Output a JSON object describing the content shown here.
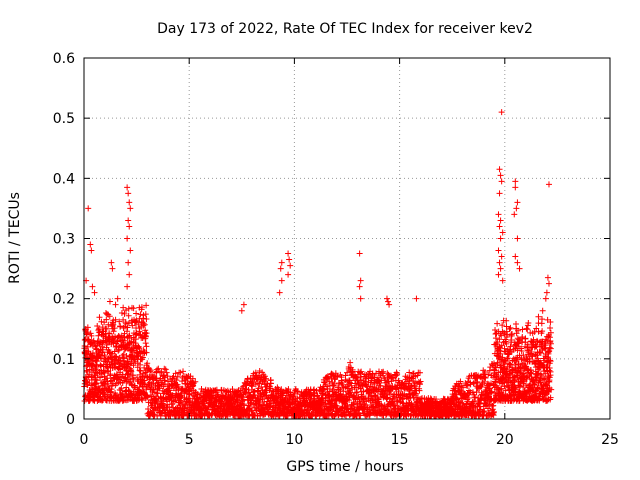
{
  "chart_data": {
    "type": "scatter",
    "title": "Day 173 of 2022, Rate Of TEC Index for receiver kev2",
    "xlabel": "GPS time / hours",
    "ylabel": "ROTI / TECUs",
    "xlim": [
      0,
      25
    ],
    "ylim": [
      0,
      0.6
    ],
    "xticks": [
      0,
      5,
      10,
      15,
      20,
      25
    ],
    "xtick_labels": [
      "0",
      "5",
      "10",
      "15",
      "20",
      "25"
    ],
    "yticks": [
      0,
      0.1,
      0.2,
      0.3,
      0.4,
      0.5,
      0.6
    ],
    "ytick_labels": [
      "0",
      "0.1",
      "0.2",
      "0.3",
      "0.4",
      "0.5",
      "0.6"
    ],
    "grid": true,
    "marker": "+",
    "color": "#ff0000",
    "series": [
      {
        "points": [
          [
            0.2,
            0.35
          ],
          [
            0.3,
            0.29
          ],
          [
            0.35,
            0.28
          ],
          [
            0.1,
            0.23
          ],
          [
            0.4,
            0.22
          ],
          [
            0.5,
            0.21
          ],
          [
            1.3,
            0.26
          ],
          [
            1.35,
            0.25
          ],
          [
            1.5,
            0.19
          ],
          [
            1.6,
            0.2
          ],
          [
            2.05,
            0.385
          ],
          [
            2.1,
            0.375
          ],
          [
            2.15,
            0.36
          ],
          [
            2.2,
            0.35
          ],
          [
            2.1,
            0.33
          ],
          [
            2.15,
            0.32
          ],
          [
            2.05,
            0.3
          ],
          [
            2.2,
            0.28
          ],
          [
            2.1,
            0.26
          ],
          [
            2.15,
            0.24
          ],
          [
            2.05,
            0.22
          ],
          [
            9.7,
            0.275
          ],
          [
            9.75,
            0.265
          ],
          [
            9.8,
            0.255
          ],
          [
            9.7,
            0.24
          ],
          [
            9.4,
            0.26
          ],
          [
            9.35,
            0.25
          ],
          [
            9.4,
            0.23
          ],
          [
            9.3,
            0.21
          ],
          [
            7.6,
            0.19
          ],
          [
            7.5,
            0.18
          ],
          [
            13.1,
            0.275
          ],
          [
            13.15,
            0.23
          ],
          [
            13.1,
            0.22
          ],
          [
            13.15,
            0.2
          ],
          [
            14.4,
            0.2
          ],
          [
            14.45,
            0.195
          ],
          [
            14.5,
            0.19
          ],
          [
            15.8,
            0.2
          ],
          [
            19.85,
            0.51
          ],
          [
            19.75,
            0.415
          ],
          [
            19.8,
            0.405
          ],
          [
            19.85,
            0.395
          ],
          [
            19.75,
            0.375
          ],
          [
            19.7,
            0.34
          ],
          [
            19.8,
            0.33
          ],
          [
            19.75,
            0.32
          ],
          [
            19.9,
            0.31
          ],
          [
            19.8,
            0.3
          ],
          [
            19.7,
            0.28
          ],
          [
            19.85,
            0.27
          ],
          [
            19.75,
            0.26
          ],
          [
            19.8,
            0.25
          ],
          [
            19.7,
            0.24
          ],
          [
            19.9,
            0.23
          ],
          [
            20.5,
            0.395
          ],
          [
            20.5,
            0.385
          ],
          [
            20.6,
            0.36
          ],
          [
            20.55,
            0.35
          ],
          [
            20.45,
            0.34
          ],
          [
            20.6,
            0.3
          ],
          [
            20.5,
            0.27
          ],
          [
            20.6,
            0.26
          ],
          [
            20.7,
            0.25
          ],
          [
            22.1,
            0.39
          ],
          [
            22.05,
            0.235
          ],
          [
            22.1,
            0.225
          ],
          [
            22.0,
            0.21
          ],
          [
            21.95,
            0.2
          ],
          [
            21.8,
            0.18
          ],
          [
            21.6,
            0.17
          ]
        ]
      }
    ]
  }
}
